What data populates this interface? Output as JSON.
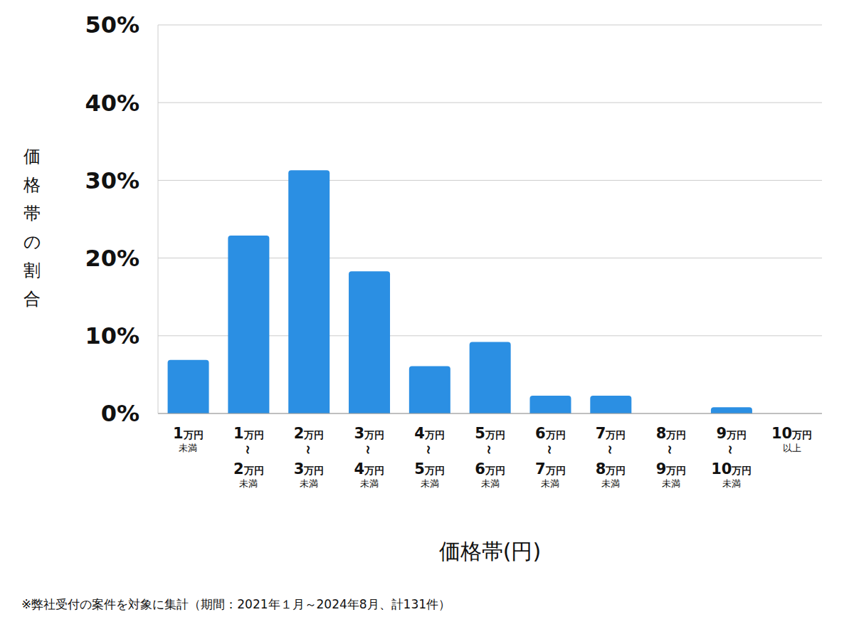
{
  "chart_data": {
    "type": "bar",
    "categories": [
      "1万円未満",
      "1万円～2万円未満",
      "2万円～3万円未満",
      "3万円～4万円未満",
      "4万円～5万円未満",
      "5万円～6万円未満",
      "6万円～7万円未満",
      "7万円～8万円未満",
      "8万円～9万円未満",
      "9万円～10万円未満",
      "10万円以上"
    ],
    "values": [
      6.9,
      22.9,
      31.3,
      18.3,
      6.1,
      9.2,
      2.3,
      2.3,
      0,
      0.8,
      0
    ],
    "color": "#2b8fe3",
    "ylim": [
      0,
      50
    ],
    "yticks": [
      {
        "value": 0,
        "label": "0%"
      },
      {
        "value": 10,
        "label": "10%"
      },
      {
        "value": 20,
        "label": "20%"
      },
      {
        "value": 30,
        "label": "30%"
      },
      {
        "value": 40,
        "label": "40%"
      },
      {
        "value": 50,
        "label": "50%"
      }
    ],
    "grid": true,
    "y_label": "価格帯の割合",
    "x_label": "価格帯(円)",
    "caption": "※弊社受付の案件を対象に集計（期間：2021年１月～2024年8月、計131件）"
  }
}
